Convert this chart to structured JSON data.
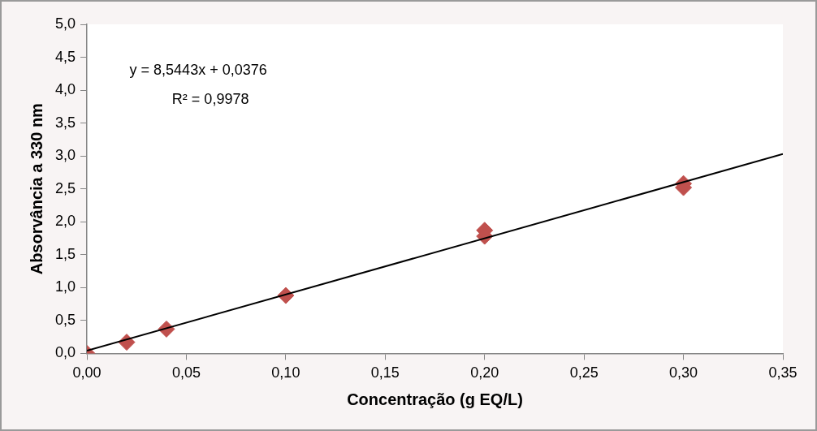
{
  "chart_data": {
    "type": "scatter",
    "xlabel": "Concentração (g EQ/L)",
    "ylabel": "Absorvância a 330 nm",
    "annotations": [
      "y = 8,5443x + 0,0376",
      "R² = 0,9978"
    ],
    "x": [
      0,
      0.02,
      0.04,
      0.1,
      0.2,
      0.2,
      0.3,
      0.3
    ],
    "series": [
      {
        "color": "#c0504d",
        "marker": "diamond",
        "values": [
          0,
          0.17,
          0.37,
          0.88,
          1.87,
          1.78,
          2.58,
          2.52
        ]
      },
      {
        "type": "line",
        "color": "#000000",
        "marker": "none",
        "line_style": "solid",
        "x": [
          0,
          0.35
        ],
        "values": [
          0.04,
          3.03
        ]
      }
    ],
    "xlim": [
      0,
      0.35
    ],
    "xticks": [
      {
        "value": 0,
        "label": "0,00"
      },
      {
        "value": 0.05,
        "label": "0,05"
      },
      {
        "value": 0.1,
        "label": "0,10"
      },
      {
        "value": 0.15,
        "label": "0,15"
      },
      {
        "value": 0.2,
        "label": "0,20"
      },
      {
        "value": 0.25,
        "label": "0,25"
      },
      {
        "value": 0.3,
        "label": "0,30"
      },
      {
        "value": 0.35,
        "label": "0,35"
      }
    ],
    "ylim": [
      0,
      5
    ],
    "yticks": [
      {
        "value": 0,
        "label": "0,0"
      },
      {
        "value": 0.5,
        "label": "0,5"
      },
      {
        "value": 1,
        "label": "1,0"
      },
      {
        "value": 1.5,
        "label": "1,5"
      },
      {
        "value": 2,
        "label": "2,0"
      },
      {
        "value": 2.5,
        "label": "2,5"
      },
      {
        "value": 3,
        "label": "3,0"
      },
      {
        "value": 3.5,
        "label": "3,5"
      },
      {
        "value": 4,
        "label": "4,0"
      },
      {
        "value": 4.5,
        "label": "4,5"
      },
      {
        "value": 5,
        "label": "5,0"
      }
    ],
    "grid": false,
    "legend": false
  }
}
